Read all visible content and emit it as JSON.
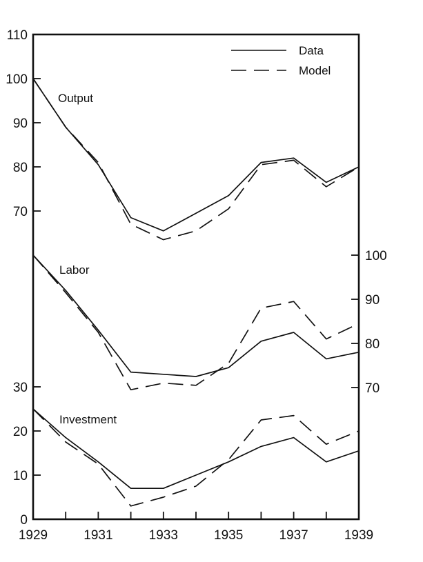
{
  "chart_data": {
    "type": "line",
    "title": "",
    "xlabel": "",
    "ylabel": "",
    "x_ticks": [
      "1929",
      "1931",
      "1933",
      "1935",
      "1937",
      "1939"
    ],
    "left_ticks": [
      "110",
      "100",
      "90",
      "80",
      "70",
      "30",
      "20",
      "10",
      "0"
    ],
    "right_ticks": [
      "100",
      "90",
      "80",
      "70"
    ],
    "legend": {
      "placement": "top-right",
      "entries": [
        "Data",
        "Model"
      ]
    },
    "panels": [
      {
        "name": "Output",
        "axis": "left",
        "ylim": [
          60,
          110
        ],
        "x": [
          1929,
          1930,
          1931,
          1932,
          1933,
          1934,
          1935,
          1936,
          1937,
          1938,
          1939
        ],
        "series": [
          {
            "name": "Data",
            "values": [
              100,
              89,
              80.5,
              68.5,
              65.5,
              69.5,
              73.5,
              81,
              82,
              76.5,
              80
            ]
          },
          {
            "name": "Model",
            "values": [
              100,
              89,
              81,
              67,
              63.5,
              65.5,
              70.5,
              80.5,
              81.5,
              75.5,
              80
            ]
          }
        ]
      },
      {
        "name": "Labor",
        "axis": "right",
        "ylim": [
          60,
          110
        ],
        "x": [
          1929,
          1930,
          1931,
          1932,
          1933,
          1934,
          1935,
          1936,
          1937,
          1938,
          1939
        ],
        "series": [
          {
            "name": "Data",
            "values": [
              100,
              92,
              83,
              73.5,
              73,
              72.5,
              74.5,
              80.5,
              82.5,
              76.5,
              78
            ]
          },
          {
            "name": "Model",
            "values": [
              100,
              91.5,
              82.5,
              69.5,
              71,
              70.5,
              75.5,
              88,
              89.5,
              81,
              84.5
            ]
          }
        ]
      },
      {
        "name": "Investment",
        "axis": "left",
        "ylim": [
          0,
          110
        ],
        "x": [
          1929,
          1930,
          1931,
          1932,
          1933,
          1934,
          1935,
          1936,
          1937,
          1938,
          1939
        ],
        "series": [
          {
            "name": "Data",
            "values": [
              25,
              18.5,
              13,
              7,
              7,
              10,
              13,
              16.5,
              18.5,
              13,
              15.5
            ]
          },
          {
            "name": "Model",
            "values": [
              25,
              17.5,
              12.5,
              3,
              5,
              7.5,
              13.5,
              22.5,
              23.5,
              17,
              20
            ]
          }
        ]
      }
    ]
  }
}
